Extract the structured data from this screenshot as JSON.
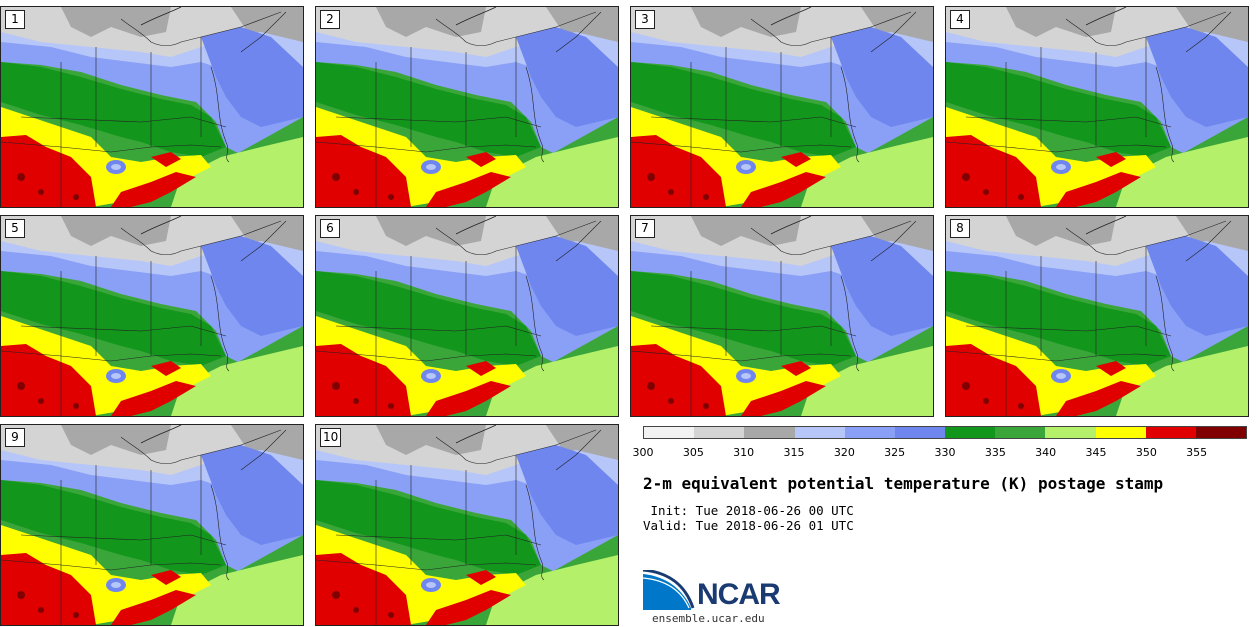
{
  "panels": [
    {
      "label": "1"
    },
    {
      "label": "2"
    },
    {
      "label": "3"
    },
    {
      "label": "4"
    },
    {
      "label": "5"
    },
    {
      "label": "6"
    },
    {
      "label": "7"
    },
    {
      "label": "8"
    },
    {
      "label": "9"
    },
    {
      "label": "10"
    }
  ],
  "colorbar": {
    "colors": [
      "#f2f2f2",
      "#d4d4d4",
      "#a8a8a8",
      "#b7c6f8",
      "#8aa0f6",
      "#6e86ee",
      "#12961c",
      "#3aa63a",
      "#b4f06a",
      "#ffff00",
      "#e00000",
      "#800000"
    ],
    "ticks": [
      "300",
      "305",
      "310",
      "315",
      "320",
      "325",
      "330",
      "335",
      "340",
      "345",
      "350",
      "355"
    ]
  },
  "title": "2-m equivalent potential temperature (K) postage stamp",
  "init_line": " Init: Tue 2018-06-26 00 UTC",
  "valid_line": "Valid: Tue 2018-06-26 01 UTC",
  "logo": {
    "text": "NCAR",
    "site": "ensemble.ucar.edu",
    "color": "#1a3b72",
    "accent": "#0077c8"
  }
}
